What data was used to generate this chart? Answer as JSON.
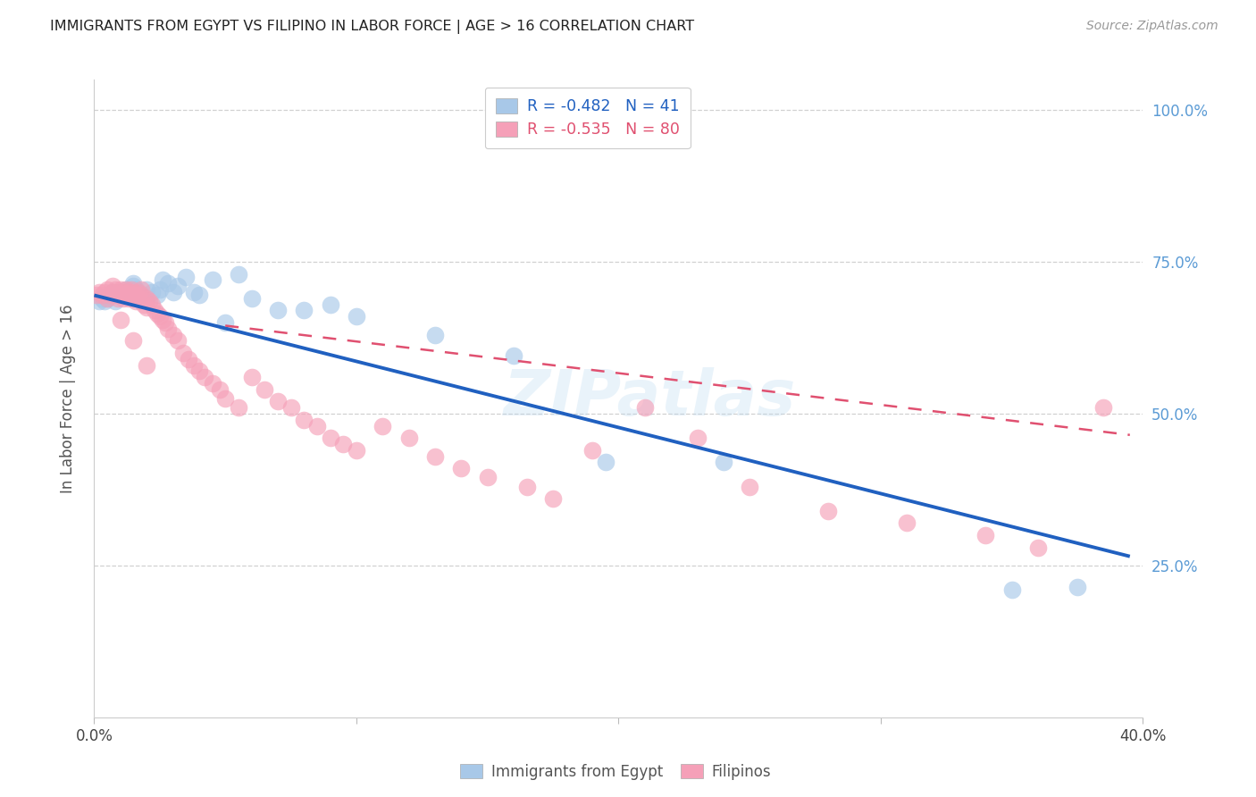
{
  "title": "IMMIGRANTS FROM EGYPT VS FILIPINO IN LABOR FORCE | AGE > 16 CORRELATION CHART",
  "source": "Source: ZipAtlas.com",
  "ylabel": "In Labor Force | Age > 16",
  "xlim": [
    0.0,
    0.4
  ],
  "ylim": [
    0.0,
    1.05
  ],
  "yticks": [
    0.25,
    0.5,
    0.75,
    1.0
  ],
  "xticks": [
    0.0,
    0.1,
    0.2,
    0.3,
    0.4
  ],
  "legend_egypt_R": "-0.482",
  "legend_egypt_N": "41",
  "legend_filipino_R": "-0.535",
  "legend_filipino_N": "80",
  "egypt_color": "#a8c8e8",
  "filipino_color": "#f5a0b8",
  "egypt_line_color": "#2060c0",
  "filipino_line_color": "#e05070",
  "egypt_scatter_x": [
    0.002,
    0.003,
    0.004,
    0.005,
    0.006,
    0.007,
    0.008,
    0.009,
    0.01,
    0.01,
    0.012,
    0.013,
    0.015,
    0.015,
    0.016,
    0.018,
    0.02,
    0.022,
    0.024,
    0.025,
    0.026,
    0.028,
    0.03,
    0.032,
    0.035,
    0.038,
    0.04,
    0.045,
    0.05,
    0.055,
    0.06,
    0.07,
    0.08,
    0.09,
    0.1,
    0.13,
    0.16,
    0.195,
    0.24,
    0.35,
    0.375
  ],
  "egypt_scatter_y": [
    0.685,
    0.69,
    0.685,
    0.69,
    0.695,
    0.7,
    0.685,
    0.695,
    0.7,
    0.695,
    0.705,
    0.7,
    0.71,
    0.715,
    0.705,
    0.695,
    0.705,
    0.7,
    0.695,
    0.705,
    0.72,
    0.715,
    0.7,
    0.71,
    0.725,
    0.7,
    0.695,
    0.72,
    0.65,
    0.73,
    0.69,
    0.67,
    0.67,
    0.68,
    0.66,
    0.63,
    0.595,
    0.42,
    0.42,
    0.21,
    0.215
  ],
  "filipino_scatter_x": [
    0.001,
    0.002,
    0.003,
    0.004,
    0.005,
    0.005,
    0.006,
    0.007,
    0.007,
    0.008,
    0.008,
    0.009,
    0.009,
    0.01,
    0.01,
    0.011,
    0.011,
    0.012,
    0.012,
    0.013,
    0.013,
    0.014,
    0.014,
    0.015,
    0.015,
    0.016,
    0.016,
    0.017,
    0.018,
    0.018,
    0.019,
    0.02,
    0.02,
    0.021,
    0.022,
    0.023,
    0.024,
    0.025,
    0.026,
    0.027,
    0.028,
    0.03,
    0.032,
    0.034,
    0.036,
    0.038,
    0.04,
    0.042,
    0.045,
    0.048,
    0.05,
    0.055,
    0.06,
    0.065,
    0.07,
    0.075,
    0.08,
    0.085,
    0.09,
    0.095,
    0.1,
    0.11,
    0.12,
    0.13,
    0.14,
    0.15,
    0.165,
    0.175,
    0.19,
    0.21,
    0.23,
    0.25,
    0.28,
    0.31,
    0.34,
    0.36,
    0.385,
    0.01,
    0.015,
    0.02
  ],
  "filipino_scatter_y": [
    0.695,
    0.7,
    0.695,
    0.7,
    0.69,
    0.705,
    0.695,
    0.7,
    0.71,
    0.695,
    0.705,
    0.69,
    0.7,
    0.695,
    0.705,
    0.69,
    0.7,
    0.695,
    0.705,
    0.69,
    0.7,
    0.695,
    0.705,
    0.69,
    0.7,
    0.695,
    0.685,
    0.7,
    0.695,
    0.705,
    0.68,
    0.69,
    0.675,
    0.685,
    0.68,
    0.67,
    0.665,
    0.66,
    0.655,
    0.65,
    0.64,
    0.63,
    0.62,
    0.6,
    0.59,
    0.58,
    0.57,
    0.56,
    0.55,
    0.54,
    0.525,
    0.51,
    0.56,
    0.54,
    0.52,
    0.51,
    0.49,
    0.48,
    0.46,
    0.45,
    0.44,
    0.48,
    0.46,
    0.43,
    0.41,
    0.395,
    0.38,
    0.36,
    0.44,
    0.51,
    0.46,
    0.38,
    0.34,
    0.32,
    0.3,
    0.28,
    0.51,
    0.655,
    0.62,
    0.58
  ],
  "egypt_line_x": [
    0.0,
    0.395
  ],
  "egypt_line_y": [
    0.695,
    0.265
  ],
  "filipino_line_x": [
    0.05,
    0.395
  ],
  "filipino_line_y": [
    0.645,
    0.465
  ],
  "watermark_text": "ZIPatlas",
  "background_color": "#ffffff",
  "grid_color": "#cccccc",
  "title_color": "#222222",
  "axis_label_color": "#555555",
  "right_tick_color": "#5b9bd5",
  "legend_r_color_egypt": "#2060c0",
  "legend_n_color_egypt": "#2060c0",
  "legend_r_color_filipino": "#e05070",
  "legend_n_color_filipino": "#e05070"
}
